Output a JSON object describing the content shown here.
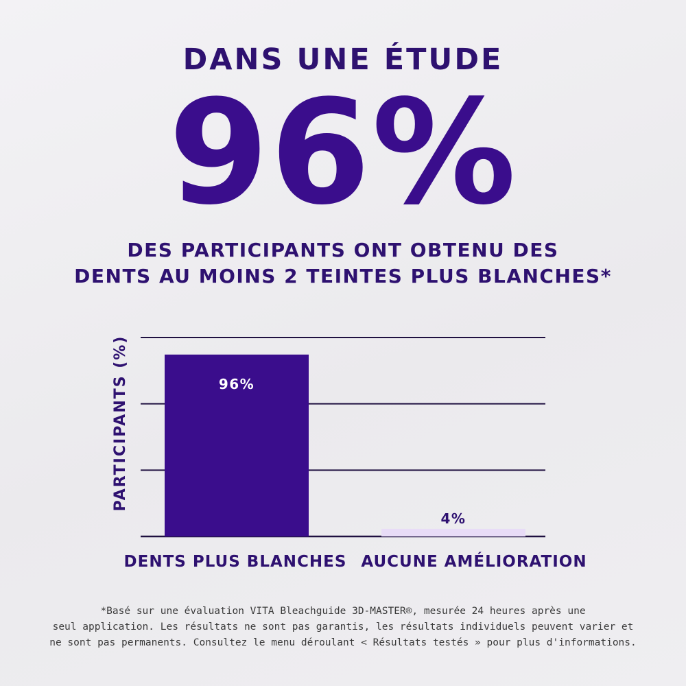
{
  "header": {
    "top_title": "DANS UNE ÉTUDE",
    "big_stat": "96%",
    "subtitle_line1": "DES PARTICIPANTS ONT OBTENU DES",
    "subtitle_line2": "DENTS AU MOINS 2 TEINTES PLUS BLANCHES*"
  },
  "chart_data": {
    "type": "bar",
    "categories": [
      "DENTS PLUS BLANCHES",
      "AUCUNE AMÉLIORATION"
    ],
    "values": [
      96,
      4
    ],
    "data_labels": [
      "96%",
      "4%"
    ],
    "ylabel": "PARTICIPANTS (%)",
    "xlabel": "",
    "title": "",
    "ylim": [
      0,
      105
    ],
    "gridlines": [
      0,
      35,
      70,
      105
    ],
    "grid": true,
    "bar_colors": [
      "#3a0d8c",
      "#e8dcf7"
    ],
    "label_colors": [
      "#ffffff",
      "#2e1170"
    ]
  },
  "footnote": {
    "line1": "*Basé sur une évaluation VITA Bleachguide 3D-MASTER®, mesurée 24 heures après une",
    "line2": "seul application. Les résultats ne sont pas garantis, les résultats individuels peuvent varier et",
    "line3": "ne sont pas permanents. Consultez le menu déroulant < Résultats testés » pour plus d'informations."
  },
  "colors": {
    "primary": "#3a0d8c",
    "text_dark": "#2e1170",
    "bar_light": "#e8dcf7",
    "gridline": "#1f1040"
  }
}
